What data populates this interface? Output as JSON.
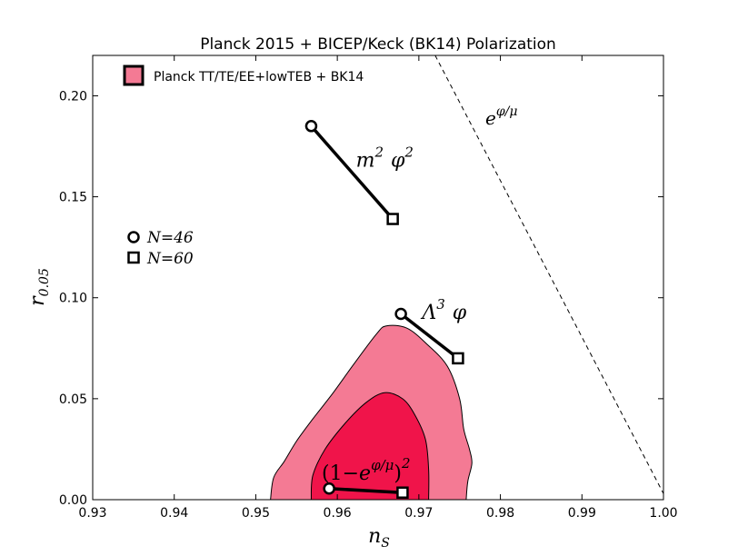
{
  "chart_data": {
    "type": "scatter",
    "title": "Planck 2015 + BICEP/Keck (BK14) Polarization",
    "xlabel": "n_S",
    "xlabel_base": "n",
    "xlabel_sub": "S",
    "ylabel": "r_0.05",
    "ylabel_base": "r",
    "ylabel_sub": "0.05",
    "xlim": [
      0.93,
      1.0
    ],
    "ylim": [
      0.0,
      0.22
    ],
    "xticks": [
      0.93,
      0.94,
      0.95,
      0.96,
      0.97,
      0.98,
      0.99,
      1.0
    ],
    "xtick_labels": [
      "0.93",
      "0.94",
      "0.95",
      "0.96",
      "0.97",
      "0.98",
      "0.99",
      "1.00"
    ],
    "yticks": [
      0.0,
      0.05,
      0.1,
      0.15,
      0.2
    ],
    "ytick_labels": [
      "0.00",
      "0.05",
      "0.10",
      "0.15",
      "0.20"
    ],
    "grid": false,
    "legend": {
      "placement": "top-left",
      "label": "Planck TT/TE/EE+lowTEB + BK14",
      "color": "#f47a94"
    },
    "marker_legend": [
      {
        "marker": "circle",
        "label": "N=46"
      },
      {
        "marker": "square",
        "label": "N=60"
      }
    ],
    "contours": {
      "outer_color": "#f47a94",
      "inner_color": "#f0144a",
      "outer": [
        [
          0.9518,
          0.0
        ],
        [
          0.9522,
          0.011
        ],
        [
          0.9535,
          0.019
        ],
        [
          0.955,
          0.029
        ],
        [
          0.957,
          0.04
        ],
        [
          0.9595,
          0.053
        ],
        [
          0.962,
          0.067
        ],
        [
          0.9648,
          0.082
        ],
        [
          0.966,
          0.086
        ],
        [
          0.9685,
          0.085
        ],
        [
          0.971,
          0.077
        ],
        [
          0.9735,
          0.066
        ],
        [
          0.975,
          0.05
        ],
        [
          0.9755,
          0.035
        ],
        [
          0.9762,
          0.025
        ],
        [
          0.9765,
          0.018
        ],
        [
          0.976,
          0.009
        ],
        [
          0.9758,
          0.0
        ]
      ],
      "inner": [
        [
          0.9568,
          0.0
        ],
        [
          0.957,
          0.012
        ],
        [
          0.9585,
          0.025
        ],
        [
          0.961,
          0.038
        ],
        [
          0.9635,
          0.048
        ],
        [
          0.9658,
          0.053
        ],
        [
          0.968,
          0.05
        ],
        [
          0.9695,
          0.042
        ],
        [
          0.9708,
          0.03
        ],
        [
          0.9712,
          0.015
        ],
        [
          0.9712,
          0.0
        ]
      ]
    },
    "dashed_line": {
      "x": [
        0.972,
        1.0
      ],
      "y": [
        0.222,
        0.003
      ],
      "label": "e^{φ/μ}"
    },
    "models": [
      {
        "name": "m² φ²",
        "n46": [
          0.9568,
          0.185
        ],
        "n60": [
          0.9668,
          0.139
        ],
        "label_pos": [
          0.9625,
          0.168
        ]
      },
      {
        "name": "Λ³ φ",
        "n46": [
          0.9678,
          0.092
        ],
        "n60": [
          0.9748,
          0.07
        ],
        "label_pos": [
          0.9705,
          0.09
        ]
      },
      {
        "name": "(1−e^{φ/μ})²",
        "n46": [
          0.959,
          0.0055
        ],
        "n60": [
          0.968,
          0.0035
        ],
        "label_pos": [
          0.9565,
          0.009
        ]
      }
    ],
    "label_texts": {
      "dashed": {
        "base": "e",
        "sup": "φ/μ"
      },
      "m2phi2": {
        "a": "m",
        "a_sup": "2",
        "b": "φ",
        "b_sup": "2"
      },
      "lambda3phi": {
        "a": "Λ",
        "a_sup": "3",
        "b": "φ"
      },
      "hilltop": {
        "open": "(1",
        "minus": "−",
        "base": "e",
        "sup": "φ/μ",
        "close": ")",
        "close_sup": "2"
      }
    }
  }
}
